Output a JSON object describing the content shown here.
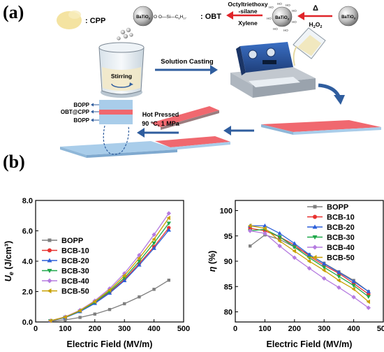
{
  "panels": {
    "a": "(a)",
    "b": "(b)"
  },
  "schematic": {
    "cpp_label": ": CPP",
    "silane_formula": "O  O—Si—C",
    "silane_sub8": "8",
    "silane_h": "H",
    "silane_sub17": "17",
    "obt_label": ": OBT",
    "bato3": "BaTiO",
    "sub3": "3",
    "reagent_line1": "Octyltriethoxy",
    "reagent_line2": "-silane",
    "solvent": "Xylene",
    "heat_symbol": "Δ",
    "oxidant": "H",
    "oxidant_sub": "2",
    "oxidant_tail": "O",
    "oxidant_sub2": "2",
    "hydroxyl": "HO",
    "stirring": "Stirring",
    "solution_casting": "Solution Casting",
    "hot_pressed_line1": "Hot Pressed",
    "hot_pressed_line2": "90 °C, 1 MPa",
    "layers": [
      "BOPP",
      "OBT@CPP",
      "BOPP"
    ]
  },
  "colors": {
    "film_pink": "#f0686f",
    "film_blue": "#a9cdea",
    "arrow_red": "#e0252a",
    "arrow_blue": "#2f5d9e",
    "cpp_yellow": "#f4e3a1"
  },
  "chart_data": [
    {
      "type": "line",
      "xlabel": "Electric Field (MV/m)",
      "ylabel_main": "U",
      "ylabel_sub": "e",
      "ylabel_unit": " (J/cm³)",
      "xlim": [
        0,
        500
      ],
      "ylim": [
        0,
        8
      ],
      "xticks": [
        "0",
        "100",
        "200",
        "300",
        "400",
        "500"
      ],
      "yticks": [
        "0.0",
        "2.0",
        "4.0",
        "6.0",
        "8.0"
      ],
      "legend_position": "middle-left",
      "x": [
        50,
        100,
        150,
        200,
        250,
        300,
        350,
        400,
        450
      ],
      "series": [
        {
          "name": "BOPP",
          "color": "#7f7f7f",
          "marker": "square",
          "values": [
            0.05,
            0.14,
            0.3,
            0.52,
            0.82,
            1.2,
            1.65,
            2.15,
            2.75
          ]
        },
        {
          "name": "BCB-10",
          "color": "#e8312f",
          "marker": "circle",
          "values": [
            0.07,
            0.3,
            0.7,
            1.25,
            1.95,
            2.8,
            3.85,
            4.95,
            6.2
          ]
        },
        {
          "name": "BCB-20",
          "color": "#2b5fd9",
          "marker": "triangle-up",
          "values": [
            0.07,
            0.29,
            0.68,
            1.22,
            1.9,
            2.72,
            3.75,
            4.85,
            6.05
          ]
        },
        {
          "name": "BCB-30",
          "color": "#1fa84a",
          "marker": "triangle-down",
          "values": [
            0.08,
            0.31,
            0.72,
            1.3,
            2.02,
            2.9,
            4.0,
            5.2,
            6.5
          ]
        },
        {
          "name": "BCB-40",
          "color": "#b57be0",
          "marker": "diamond",
          "values": [
            0.08,
            0.34,
            0.78,
            1.4,
            2.2,
            3.2,
            4.4,
            5.75,
            7.15
          ]
        },
        {
          "name": "BCB-50",
          "color": "#c8a000",
          "marker": "triangle-left",
          "values": [
            0.08,
            0.32,
            0.75,
            1.35,
            2.1,
            3.05,
            4.2,
            5.45,
            6.85
          ]
        }
      ]
    },
    {
      "type": "line",
      "xlabel": "Electric Field (MV/m)",
      "ylabel_main": "η",
      "ylabel_unit": " (%)",
      "xlim": [
        0,
        500
      ],
      "ylim": [
        78,
        102
      ],
      "xticks": [
        "0",
        "100",
        "200",
        "300",
        "400",
        "500"
      ],
      "yticks": [
        "80",
        "85",
        "90",
        "95",
        "100"
      ],
      "legend_position": "top-right",
      "x": [
        50,
        100,
        150,
        200,
        250,
        300,
        350,
        400,
        450
      ],
      "series": [
        {
          "name": "BOPP",
          "color": "#7f7f7f",
          "marker": "square",
          "values": [
            93.0,
            95.2,
            94.3,
            92.8,
            91.3,
            89.6,
            87.9,
            86.2,
            84.0
          ]
        },
        {
          "name": "BCB-10",
          "color": "#e8312f",
          "marker": "circle",
          "values": [
            96.5,
            96.0,
            94.8,
            93.2,
            91.0,
            89.2,
            87.6,
            85.6,
            83.5
          ]
        },
        {
          "name": "BCB-20",
          "color": "#2b5fd9",
          "marker": "triangle-up",
          "values": [
            97.0,
            97.0,
            95.5,
            93.5,
            91.3,
            89.5,
            87.8,
            86.0,
            84.0
          ]
        },
        {
          "name": "BCB-30",
          "color": "#1fa84a",
          "marker": "triangle-down",
          "values": [
            96.0,
            96.3,
            94.8,
            92.8,
            90.7,
            88.8,
            87.0,
            85.2,
            83.0
          ]
        },
        {
          "name": "BCB-40",
          "color": "#b57be0",
          "marker": "diamond",
          "values": [
            96.0,
            95.5,
            93.0,
            90.7,
            88.6,
            86.6,
            84.8,
            82.9,
            80.8
          ]
        },
        {
          "name": "BCB-50",
          "color": "#c8a000",
          "marker": "triangle-left",
          "values": [
            97.0,
            96.5,
            94.0,
            92.0,
            90.0,
            88.2,
            86.2,
            84.5,
            82.0
          ]
        }
      ]
    }
  ]
}
